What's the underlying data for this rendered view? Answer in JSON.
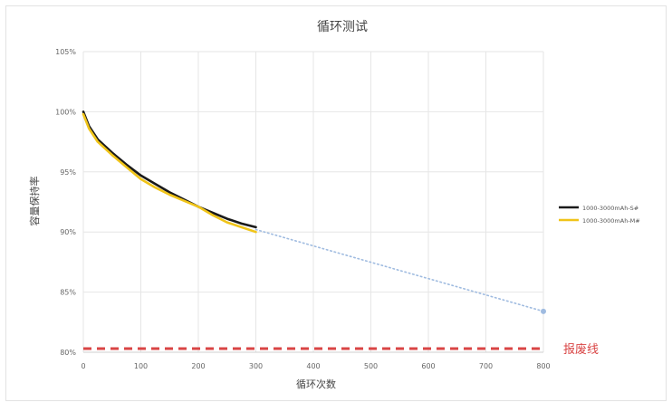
{
  "chart_data": {
    "type": "line",
    "title": "循环测试",
    "xlabel": "循环次数",
    "ylabel": "容量保持率",
    "xlim": [
      0,
      800
    ],
    "ylim": [
      0.8,
      1.05
    ],
    "xticks": [
      0,
      100,
      200,
      300,
      400,
      500,
      600,
      700,
      800
    ],
    "xtick_labels": [
      "0",
      "100",
      "200",
      "300",
      "400",
      "500",
      "600",
      "700",
      "800"
    ],
    "yticks": [
      0.8,
      0.85,
      0.9,
      0.95,
      1.0,
      1.05
    ],
    "ytick_labels": [
      "80%",
      "85%",
      "90%",
      "95%",
      "100%",
      "105%"
    ],
    "grid": true,
    "legend_position": "right",
    "series": [
      {
        "name": "1000-3000mAh-S#",
        "color": "#1a1a1a",
        "x": [
          0,
          10,
          25,
          50,
          75,
          100,
          125,
          150,
          175,
          200,
          225,
          250,
          275,
          300
        ],
        "y": [
          1.0,
          0.988,
          0.977,
          0.966,
          0.956,
          0.947,
          0.94,
          0.933,
          0.927,
          0.921,
          0.916,
          0.911,
          0.907,
          0.904
        ]
      },
      {
        "name": "1000-3000mAh-M#",
        "color": "#f0c419",
        "x": [
          0,
          10,
          25,
          50,
          75,
          100,
          125,
          150,
          175,
          200,
          225,
          250,
          275,
          300
        ],
        "y": [
          0.998,
          0.986,
          0.975,
          0.964,
          0.954,
          0.944,
          0.937,
          0.931,
          0.926,
          0.921,
          0.914,
          0.908,
          0.904,
          0.9
        ]
      },
      {
        "name": "",
        "style": "dotted-trend",
        "color": "#9fbbe0",
        "x": [
          300,
          800
        ],
        "y": [
          0.902,
          0.834
        ]
      }
    ],
    "reference_lines": [
      {
        "label": "报废线",
        "y": 0.803,
        "color": "#d94545",
        "style": "dashed"
      }
    ]
  }
}
